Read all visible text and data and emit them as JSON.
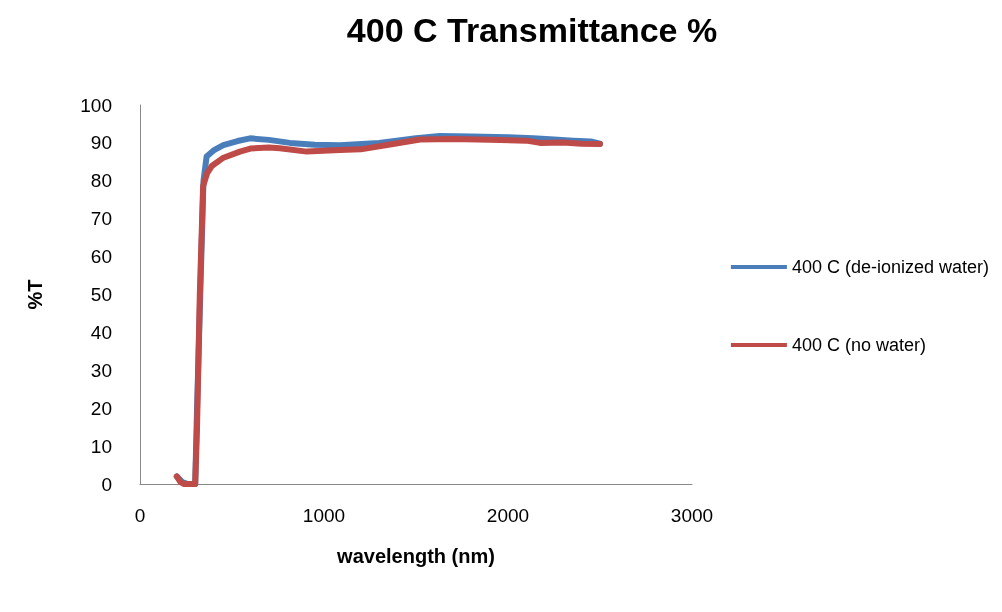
{
  "chart_data": {
    "type": "line",
    "title": "400 C Transmittance %",
    "xlabel": "wavelength (nm)",
    "ylabel": "%T",
    "xlim": [
      0,
      3000
    ],
    "xticks": [
      0,
      1000,
      2000,
      3000
    ],
    "ylim": [
      0,
      100
    ],
    "yticks": [
      0,
      10,
      20,
      30,
      40,
      50,
      60,
      70,
      80,
      90,
      100
    ],
    "grid": false,
    "legend": "right",
    "marker": "none",
    "line_style": "solid",
    "series": [
      {
        "name": "400 C (de-ionized water)",
        "color": "#4a7ebb",
        "x": [
          200,
          230,
          260,
          300,
          310,
          345,
          362,
          400,
          453,
          530,
          598,
          700,
          815,
          950,
          1087,
          1300,
          1500,
          1630,
          1800,
          2000,
          2137,
          2250,
          2355,
          2450,
          2500
        ],
        "values": [
          2,
          0.5,
          0,
          0,
          20,
          80,
          86.4,
          88,
          89.4,
          90.5,
          91.2,
          90.8,
          90,
          89.5,
          89.4,
          90,
          91.2,
          91.8,
          91.7,
          91.5,
          91.2,
          90.9,
          90.6,
          90.4,
          89.8
        ]
      },
      {
        "name": "400 C (no water)",
        "color": "#be4b48",
        "x": [
          200,
          220,
          240,
          270,
          300,
          310,
          325,
          343,
          365,
          390,
          450,
          543,
          600,
          700,
          760,
          906,
          1087,
          1200,
          1350,
          1522,
          1700,
          1900,
          2100,
          2174,
          2300,
          2400,
          2500
        ],
        "values": [
          2,
          0.5,
          0,
          0,
          0,
          15,
          50,
          78.6,
          82,
          83.9,
          86,
          87.7,
          88.5,
          88.8,
          88.6,
          87.7,
          88.1,
          88.3,
          89.5,
          90.9,
          91,
          90.8,
          90.6,
          90,
          90.1,
          89.8,
          89.7
        ]
      }
    ]
  }
}
